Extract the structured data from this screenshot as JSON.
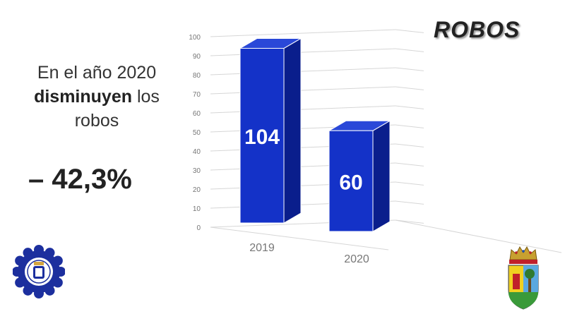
{
  "title": "ROBOS",
  "headline": {
    "line1": "En el año 2020",
    "bold": "disminuyen",
    "rest": " los",
    "line3": "robos"
  },
  "change": "– 42,3%",
  "colors": {
    "bar_front": "#1432c8",
    "bar_side": "#0a1e8c",
    "bar_top": "#2a48d8",
    "axis_text": "#777777",
    "grid": "#d6d6d6"
  },
  "chart_data": {
    "type": "bar",
    "categories": [
      "2019",
      "2020"
    ],
    "values": [
      104,
      60
    ],
    "data_labels": [
      "104",
      "60"
    ],
    "yticks": [
      0,
      10,
      20,
      30,
      40,
      50,
      60,
      70,
      80,
      90,
      100
    ],
    "ylim": [
      0,
      100
    ],
    "grid": true,
    "style": "3d"
  },
  "logos": {
    "left": "police-badge-logo",
    "right": "municipal-coat-of-arms"
  }
}
